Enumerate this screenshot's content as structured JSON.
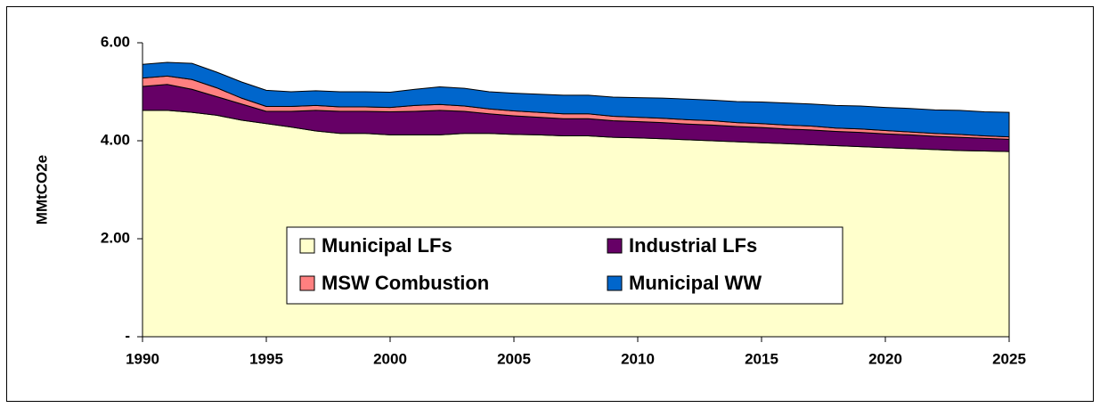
{
  "chart_data": {
    "type": "stacked_area",
    "ylabel": "MMtCO2e",
    "x": [
      1990,
      1991,
      1992,
      1993,
      1994,
      1995,
      1996,
      1997,
      1998,
      1999,
      2000,
      2001,
      2002,
      2003,
      2004,
      2005,
      2006,
      2007,
      2008,
      2009,
      2010,
      2011,
      2012,
      2013,
      2014,
      2015,
      2016,
      2017,
      2018,
      2019,
      2020,
      2021,
      2022,
      2023,
      2024,
      2025
    ],
    "xlim": [
      1990,
      2025
    ],
    "xticks": [
      1990,
      1995,
      2000,
      2005,
      2010,
      2015,
      2020,
      2025
    ],
    "ylim": [
      0,
      6
    ],
    "yticks": [
      {
        "value": 0,
        "label": "-"
      },
      {
        "value": 2,
        "label": "2.00"
      },
      {
        "value": 4,
        "label": "4.00"
      },
      {
        "value": 6,
        "label": "6.00"
      }
    ],
    "grid": false,
    "series": [
      {
        "name": "Municipal LFs",
        "color": "#ffffcc",
        "values": [
          4.62,
          4.62,
          4.58,
          4.52,
          4.42,
          4.35,
          4.28,
          4.2,
          4.15,
          4.15,
          4.12,
          4.12,
          4.12,
          4.15,
          4.15,
          4.13,
          4.12,
          4.1,
          4.1,
          4.07,
          4.06,
          4.04,
          4.02,
          4.0,
          3.98,
          3.96,
          3.94,
          3.92,
          3.9,
          3.88,
          3.86,
          3.84,
          3.82,
          3.8,
          3.79,
          3.78
        ]
      },
      {
        "name": "Industrial LFs",
        "color": "#660066",
        "values": [
          0.49,
          0.53,
          0.47,
          0.38,
          0.33,
          0.25,
          0.32,
          0.42,
          0.45,
          0.45,
          0.47,
          0.48,
          0.5,
          0.45,
          0.4,
          0.38,
          0.36,
          0.35,
          0.35,
          0.34,
          0.33,
          0.33,
          0.32,
          0.32,
          0.31,
          0.31,
          0.3,
          0.3,
          0.29,
          0.29,
          0.28,
          0.28,
          0.27,
          0.27,
          0.26,
          0.25
        ]
      },
      {
        "name": "MSW Combustion",
        "color": "#ff8080",
        "values": [
          0.17,
          0.17,
          0.2,
          0.18,
          0.12,
          0.1,
          0.1,
          0.1,
          0.09,
          0.09,
          0.09,
          0.12,
          0.12,
          0.11,
          0.1,
          0.1,
          0.1,
          0.1,
          0.1,
          0.09,
          0.09,
          0.09,
          0.09,
          0.09,
          0.08,
          0.08,
          0.08,
          0.08,
          0.07,
          0.07,
          0.07,
          0.06,
          0.06,
          0.06,
          0.05,
          0.05
        ]
      },
      {
        "name": "Municipal WW",
        "color": "#0066cc",
        "values": [
          0.28,
          0.28,
          0.33,
          0.32,
          0.33,
          0.33,
          0.3,
          0.3,
          0.31,
          0.31,
          0.31,
          0.33,
          0.36,
          0.36,
          0.35,
          0.36,
          0.37,
          0.38,
          0.38,
          0.39,
          0.4,
          0.41,
          0.42,
          0.42,
          0.43,
          0.44,
          0.45,
          0.45,
          0.46,
          0.47,
          0.47,
          0.48,
          0.48,
          0.49,
          0.49,
          0.5
        ]
      }
    ]
  }
}
